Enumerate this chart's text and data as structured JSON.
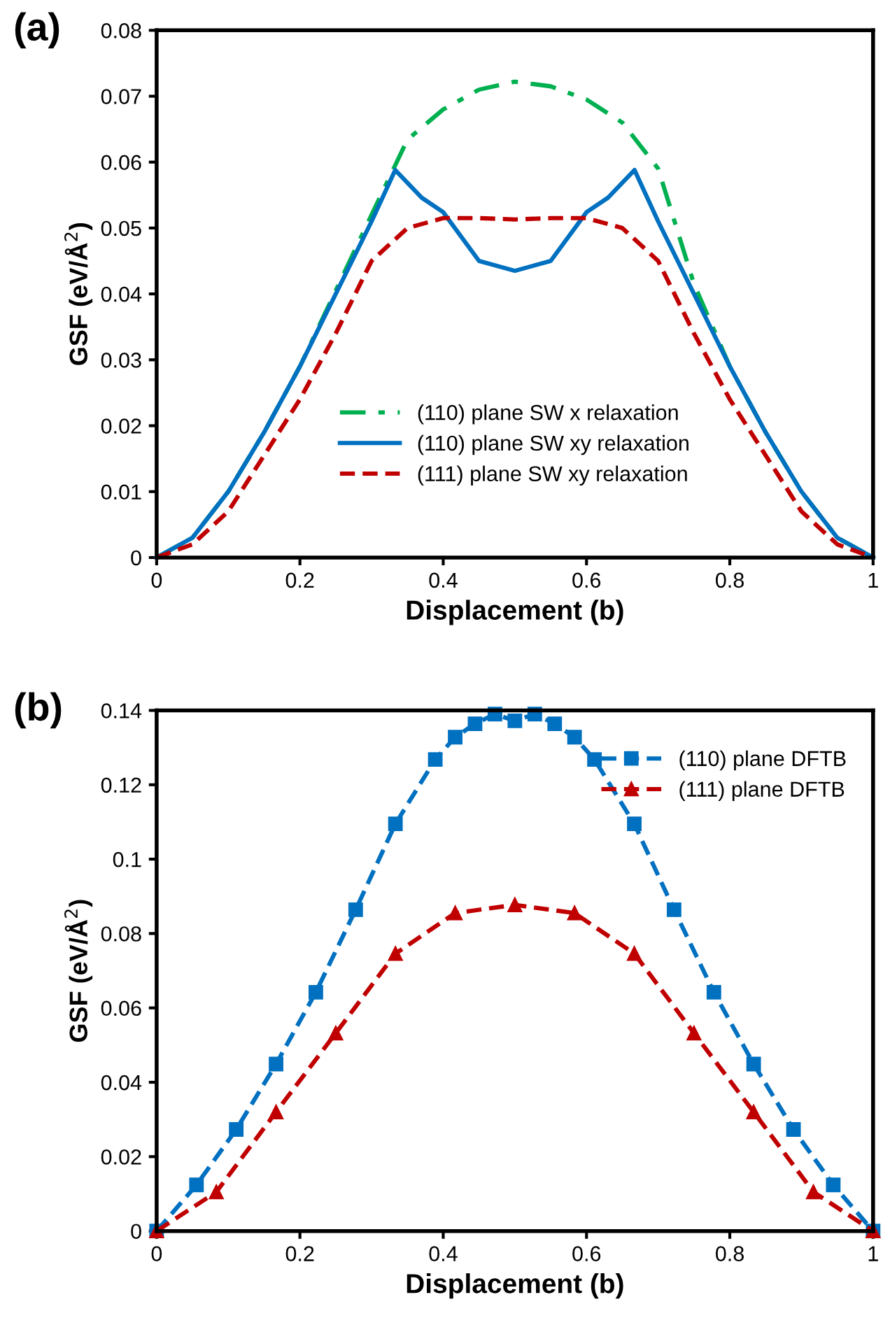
{
  "chart_data": [
    {
      "type": "line",
      "annotations": [
        "(a)"
      ],
      "xlabel": "Displacement (b)",
      "ylabel": "GSF (eV/Å$^{2}$)",
      "xlim": [
        0,
        1
      ],
      "xticks": [
        0,
        0.2,
        0.4,
        0.6,
        0.8,
        1
      ],
      "ylim": [
        0,
        0.08
      ],
      "yticks": [
        0,
        0.01,
        0.02,
        0.03,
        0.04,
        0.05,
        0.06,
        0.07,
        0.08
      ],
      "legend": "bottom",
      "grid": false,
      "marker": "none",
      "series": [
        {
          "name": "(110) plane SW x relaxation",
          "color": "#00b050",
          "line_style": "dashdot",
          "x": [
            0,
            0.05,
            0.1,
            0.15,
            0.2,
            0.25,
            0.3,
            0.35,
            0.4,
            0.45,
            0.5,
            0.55,
            0.6,
            0.65,
            0.7,
            0.75,
            0.8,
            0.85,
            0.9,
            0.95,
            1
          ],
          "values": [
            0,
            0.003,
            0.01,
            0.019,
            0.029,
            0.0405,
            0.052,
            0.0634,
            0.068,
            0.071,
            0.0722,
            0.0715,
            0.0695,
            0.066,
            0.059,
            0.0415,
            0.029,
            0.019,
            0.01,
            0.003,
            0
          ]
        },
        {
          "name": "(110) plane SW xy relaxation",
          "color": "#0070c0",
          "line_style": "solid",
          "x": [
            0,
            0.05,
            0.1,
            0.15,
            0.2,
            0.25,
            0.3,
            0.333,
            0.37,
            0.4,
            0.45,
            0.5,
            0.55,
            0.6,
            0.63,
            0.667,
            0.7,
            0.75,
            0.8,
            0.85,
            0.9,
            0.95,
            1
          ],
          "values": [
            0,
            0.003,
            0.01,
            0.019,
            0.029,
            0.04,
            0.051,
            0.0588,
            0.0546,
            0.0524,
            0.045,
            0.0435,
            0.045,
            0.0524,
            0.0546,
            0.0588,
            0.051,
            0.04,
            0.029,
            0.019,
            0.01,
            0.003,
            0
          ]
        },
        {
          "name": "(111) plane SW xy relaxation",
          "color": "#c00000",
          "line_style": "dashed",
          "x": [
            0,
            0.05,
            0.1,
            0.15,
            0.2,
            0.25,
            0.3,
            0.35,
            0.4,
            0.45,
            0.5,
            0.55,
            0.6,
            0.65,
            0.7,
            0.75,
            0.8,
            0.85,
            0.9,
            0.95,
            1
          ],
          "values": [
            0,
            0.002,
            0.007,
            0.0155,
            0.024,
            0.034,
            0.045,
            0.05,
            0.0515,
            0.0515,
            0.0513,
            0.0515,
            0.0515,
            0.05,
            0.045,
            0.034,
            0.024,
            0.0155,
            0.007,
            0.002,
            0
          ]
        }
      ]
    },
    {
      "type": "line",
      "annotations": [
        "(b)"
      ],
      "xlabel": "Displacement (b)",
      "ylabel": "GSF (eV/Å$^{2}$)",
      "xlim": [
        0,
        1
      ],
      "xticks": [
        0,
        0.2,
        0.4,
        0.6,
        0.8,
        1
      ],
      "ylim": [
        0,
        0.14
      ],
      "yticks": [
        0,
        0.02,
        0.04,
        0.06,
        0.08,
        0.1,
        0.12,
        0.14
      ],
      "legend": "top right",
      "grid": false,
      "line_style": "dashed",
      "series": [
        {
          "name": "(110) plane DFTB",
          "color": "#0070c0",
          "marker": "square",
          "x": [
            0,
            0.0556,
            0.1111,
            0.1667,
            0.2222,
            0.2778,
            0.3333,
            0.3889,
            0.4167,
            0.4444,
            0.4722,
            0.5,
            0.5278,
            0.5556,
            0.5833,
            0.6111,
            0.6667,
            0.7222,
            0.7778,
            0.8333,
            0.8889,
            0.9444,
            1
          ],
          "values": [
            0,
            0.0124,
            0.0273,
            0.0449,
            0.0642,
            0.0864,
            0.1095,
            0.1268,
            0.1328,
            0.1364,
            0.139,
            0.1372,
            0.139,
            0.1364,
            0.1328,
            0.1268,
            0.1095,
            0.0864,
            0.0642,
            0.0449,
            0.0273,
            0.0124,
            0
          ]
        },
        {
          "name": "(111) plane DFTB",
          "color": "#c00000",
          "marker": "triangle",
          "x": [
            0,
            0.0833,
            0.1667,
            0.25,
            0.3333,
            0.4167,
            0.5,
            0.5833,
            0.6667,
            0.75,
            0.8333,
            0.9167,
            1
          ],
          "values": [
            0,
            0.0105,
            0.032,
            0.0532,
            0.0746,
            0.0855,
            0.0877,
            0.0855,
            0.0746,
            0.0532,
            0.032,
            0.0105,
            0
          ]
        }
      ]
    }
  ]
}
